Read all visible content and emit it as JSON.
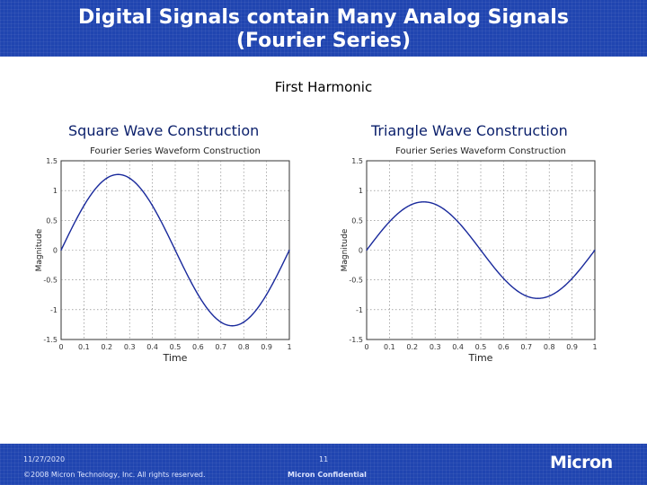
{
  "slide": {
    "title_line1": "Digital Signals contain Many Analog Signals",
    "title_line2": "(Fourier Series)",
    "subtitle": "First Harmonic"
  },
  "footer": {
    "date": "11/27/2020",
    "page": "11",
    "copyright": "©2008 Micron Technology, Inc. All rights reserved.",
    "confidential": "Micron Confidential",
    "logo_text": "Micron"
  },
  "colors": {
    "header_bg": "#2045b0",
    "curve": "#1a2a9c",
    "panel_title": "#0a1f6b"
  },
  "chart_data": [
    {
      "type": "line",
      "panel_title": "Square Wave Construction",
      "title": "Fourier Series Waveform Construction",
      "xlabel": "Time",
      "ylabel": "Magnitude",
      "xlim": [
        0,
        1
      ],
      "ylim": [
        -1.5,
        1.5
      ],
      "xticks": [
        "0",
        "0.1",
        "0.2",
        "0.3",
        "0.4",
        "0.5",
        "0.6",
        "0.7",
        "0.8",
        "0.9",
        "1"
      ],
      "yticks": [
        "1.5",
        "1",
        "0.5",
        "0",
        "-0.5",
        "-1",
        "-1.5"
      ],
      "grid": true,
      "series": [
        {
          "amplitude": 1.27,
          "frequency": 1,
          "x": [
            0,
            0.1,
            0.2,
            0.25,
            0.3,
            0.4,
            0.5,
            0.6,
            0.7,
            0.75,
            0.8,
            0.9,
            1.0
          ],
          "values": [
            0,
            0.75,
            1.21,
            1.27,
            1.21,
            0.75,
            0,
            -0.75,
            -1.21,
            -1.27,
            -1.21,
            -0.75,
            0
          ]
        }
      ]
    },
    {
      "type": "line",
      "panel_title": "Triangle Wave Construction",
      "title": "Fourier Series Waveform Construction",
      "xlabel": "Time",
      "ylabel": "Magnitude",
      "xlim": [
        0,
        1
      ],
      "ylim": [
        -1.5,
        1.5
      ],
      "xticks": [
        "0",
        "0.1",
        "0.2",
        "0.3",
        "0.4",
        "0.5",
        "0.6",
        "0.7",
        "0.8",
        "0.9",
        "1"
      ],
      "yticks": [
        "1.5",
        "1",
        "0.5",
        "0",
        "-0.5",
        "-1",
        "-1.5"
      ],
      "grid": true,
      "series": [
        {
          "amplitude": 0.81,
          "frequency": 1,
          "x": [
            0,
            0.1,
            0.2,
            0.25,
            0.3,
            0.4,
            0.5,
            0.6,
            0.7,
            0.75,
            0.8,
            0.9,
            1.0
          ],
          "values": [
            0,
            0.48,
            0.77,
            0.81,
            0.77,
            0.48,
            0,
            -0.48,
            -0.77,
            -0.81,
            -0.77,
            -0.48,
            0
          ]
        }
      ]
    }
  ]
}
